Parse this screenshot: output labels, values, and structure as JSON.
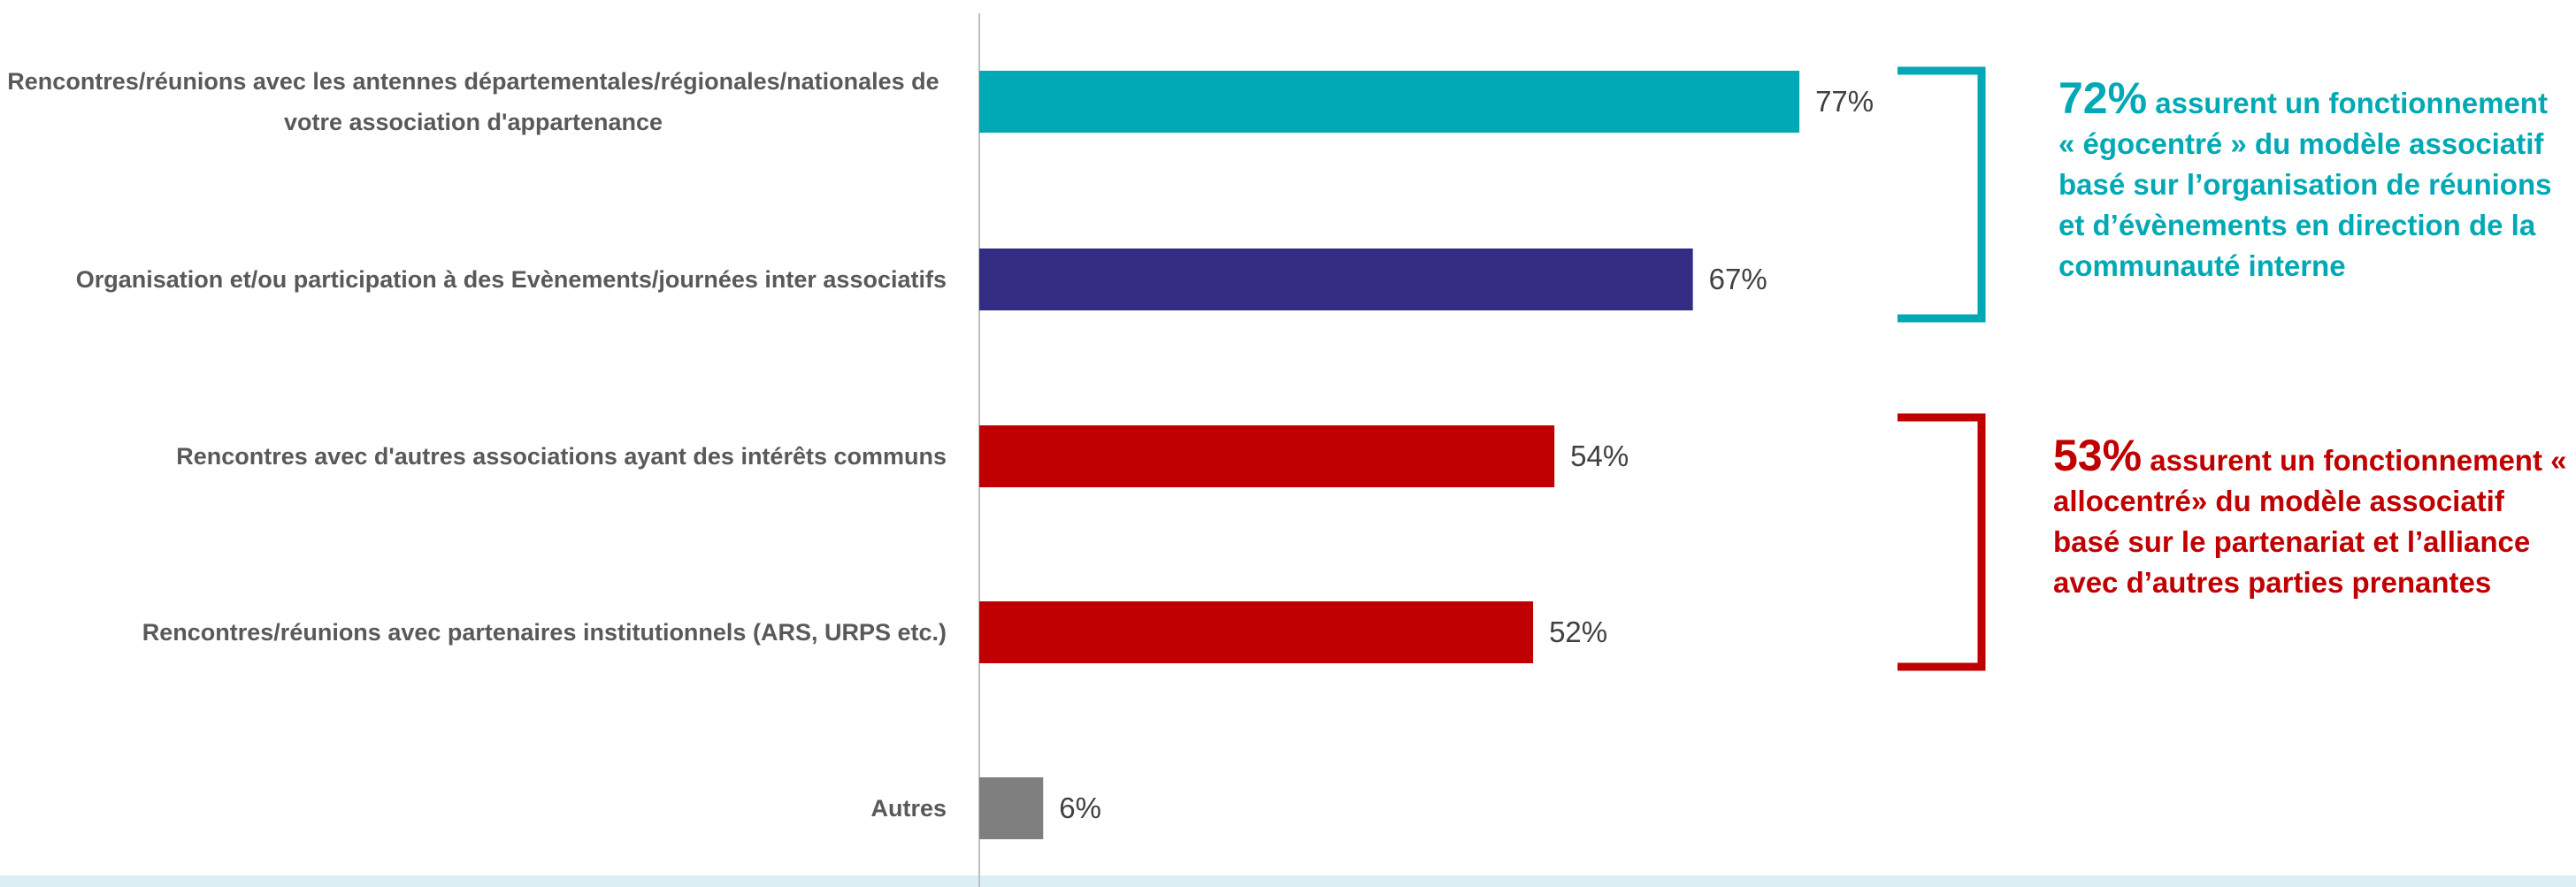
{
  "chart_data": {
    "type": "barh",
    "categories": [
      "Rencontres/réunions avec les antennes départementales/régionales/nationales de votre association d'appartenance",
      "Organisation et/ou participation à des Evènements/journées  inter associatifs",
      "Rencontres avec d'autres associations ayant des intérêts communs",
      "Rencontres/réunions avec partenaires institutionnels (ARS, URPS etc.)",
      "Autres"
    ],
    "values": [
      77,
      67,
      54,
      52,
      6
    ],
    "value_labels": [
      "77%",
      "67%",
      "54%",
      "52%",
      "6%"
    ],
    "colors": [
      "#00a9b5",
      "#332c82",
      "#c00000",
      "#c00000",
      "#7f7f7f"
    ],
    "annotations": [
      {
        "highlight": "72%",
        "text": "assurent un fonctionnement « égocentré » du modèle associatif basé sur l’organisation de réunions et d’évènements en direction de la communauté interne",
        "color": "#00a9b5"
      },
      {
        "highlight": "53%",
        "text": "assurent un fonctionnement « allocentré» du modèle associatif basé sur le partenariat et l’alliance avec d’autres parties prenantes",
        "color": "#c00000"
      }
    ]
  }
}
